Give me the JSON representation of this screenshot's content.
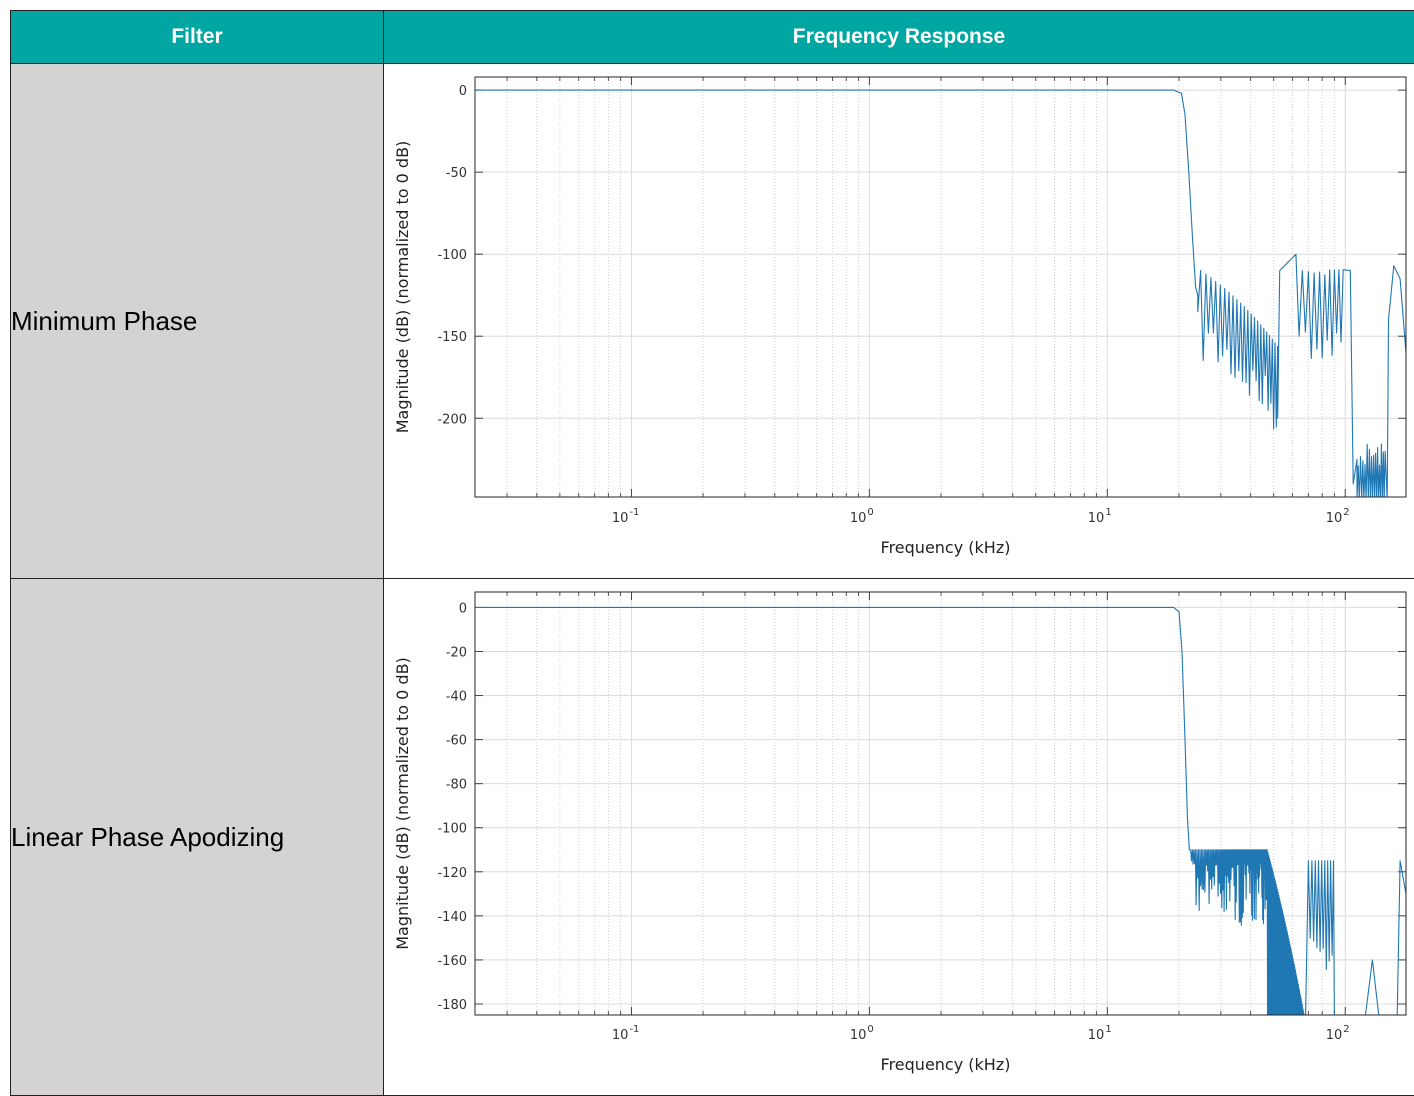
{
  "table": {
    "headers": [
      "Filter",
      "Frequency Response"
    ],
    "rows": [
      {
        "filter": "Minimum Phase"
      },
      {
        "filter": "Linear Phase Apodizing"
      }
    ]
  },
  "colors": {
    "header_bg": "#00a7a2",
    "filter_cell_bg": "#d4d2d3",
    "line": "#1f77b4"
  },
  "chart_data": [
    {
      "type": "line",
      "title": "",
      "xlabel": "Frequency (kHz)",
      "ylabel": "Magnitude (dB) (normalized to 0 dB)",
      "xscale": "log",
      "xlim": [
        0.022,
        180
      ],
      "ylim": [
        -248,
        8
      ],
      "grid": true,
      "xticks": [
        {
          "value": 0.1,
          "base": "10",
          "exp": "-1"
        },
        {
          "value": 1,
          "base": "10",
          "exp": "0"
        },
        {
          "value": 10,
          "base": "10",
          "exp": "1"
        },
        {
          "value": 100,
          "base": "10",
          "exp": "2"
        }
      ],
      "yticks": [
        0,
        -50,
        -100,
        -150,
        -200
      ],
      "series": [
        {
          "x": [
            0.022,
            1,
            10,
            19,
            20.5,
            21.2,
            22,
            22.8,
            23.5,
            24
          ],
          "y": [
            0,
            0,
            0,
            0,
            -2,
            -15,
            -50,
            -90,
            -120,
            -125
          ]
        }
      ]
    },
    {
      "type": "line",
      "title": "",
      "xlabel": "Frequency (kHz)",
      "ylabel": "Magnitude (dB) (normalized to 0 dB)",
      "xscale": "log",
      "xlim": [
        0.022,
        180
      ],
      "ylim": [
        -185,
        7
      ],
      "grid": true,
      "xticks": [
        {
          "value": 0.1,
          "base": "10",
          "exp": "-1"
        },
        {
          "value": 1,
          "base": "10",
          "exp": "0"
        },
        {
          "value": 10,
          "base": "10",
          "exp": "1"
        },
        {
          "value": 100,
          "base": "10",
          "exp": "2"
        }
      ],
      "yticks": [
        0,
        -20,
        -40,
        -60,
        -80,
        -100,
        -120,
        -140,
        -160,
        -180
      ],
      "series": [
        {
          "x": [
            0.022,
            1,
            10,
            19,
            20,
            20.6,
            21.2,
            21.7,
            22.1,
            22.4
          ],
          "y": [
            0,
            0,
            0,
            0,
            -2,
            -20,
            -60,
            -95,
            -110,
            -110
          ]
        }
      ]
    }
  ]
}
